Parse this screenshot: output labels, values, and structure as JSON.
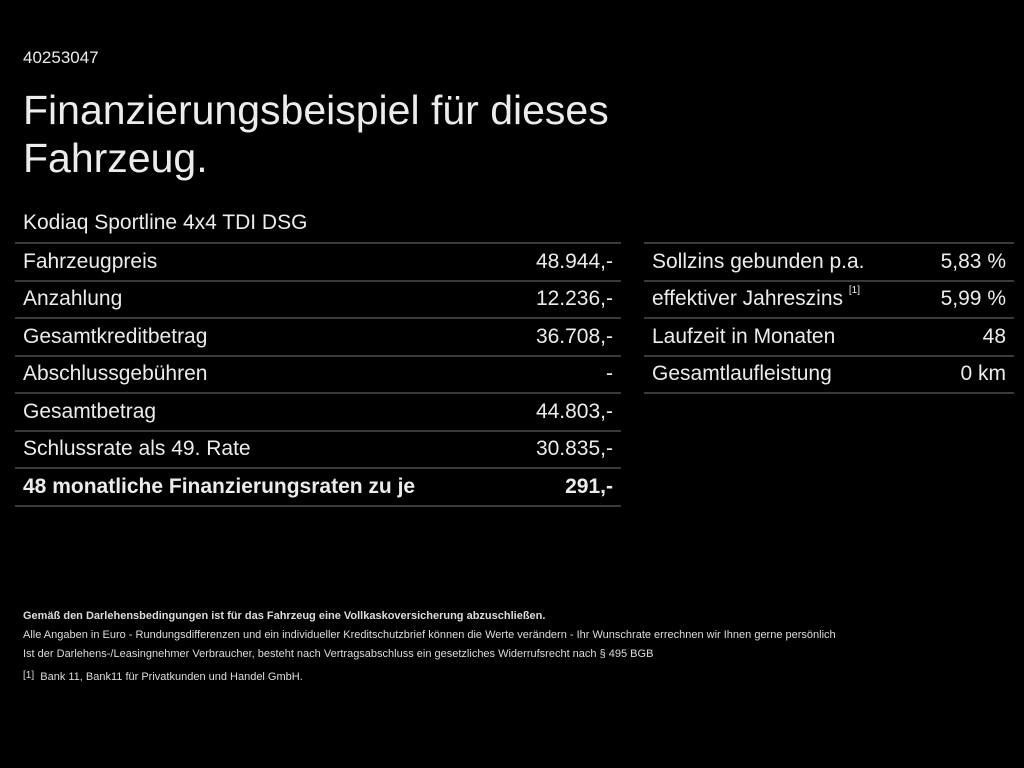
{
  "id": "40253047",
  "title": "Finanzierungsbeispiel für dieses Fahrzeug.",
  "model": "Kodiaq Sportline 4x4 TDI DSG",
  "left_rows": [
    {
      "label": "Fahrzeugpreis",
      "value": "48.944,-"
    },
    {
      "label": "Anzahlung",
      "value": "12.236,-"
    },
    {
      "label": "Gesamtkreditbetrag",
      "value": "36.708,-"
    },
    {
      "label": "Abschlussgebühren",
      "value": "-"
    },
    {
      "label": "Gesamtbetrag",
      "value": "44.803,-"
    },
    {
      "label": "Schlussrate als 49. Rate",
      "value": "30.835,-"
    },
    {
      "label": "48 monatliche Finanzierungsraten zu je",
      "value": "291,-"
    }
  ],
  "right_rows": [
    {
      "label": "Sollzins gebunden p.a.",
      "value": "5,83 %"
    },
    {
      "label": "effektiver Jahreszins",
      "sup": "[1]",
      "value": "5,99 %"
    },
    {
      "label": "Laufzeit in Monaten",
      "value": "48"
    },
    {
      "label": "Gesamtlaufleistung",
      "value": "0 km"
    }
  ],
  "notes": {
    "bold": "Gemäß den Darlehensbedingungen ist für das Fahrzeug eine Vollkaskoversicherung abzuschließen.",
    "line1": "Alle Angaben in Euro - Rundungsdifferenzen und ein individueller Kreditschutzbrief können die Werte verändern - Ihr Wunschrate errechnen wir Ihnen gerne persönlich",
    "line2": "Ist der Darlehens-/Leasingnehmer Verbraucher, besteht nach Vertragsabschluss ein gesetzliches Widerrufsrecht nach § 495 BGB",
    "footnote_mark": "[1]",
    "footnote": "Bank 11, Bank11 für Privatkunden und Handel GmbH."
  }
}
